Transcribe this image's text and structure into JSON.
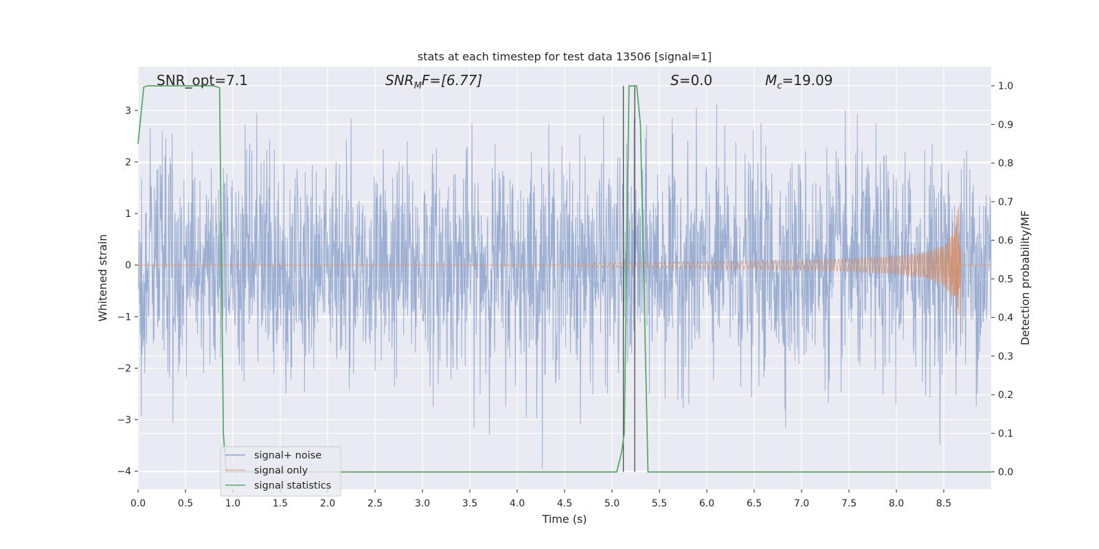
{
  "chart_data": {
    "type": "line",
    "title": "stats at each timestep for test data 13506 [signal=1]",
    "xlabel": "Time (s)",
    "ylabel": "Whitened strain",
    "ylabel_right": "Detection probability/MF",
    "xlim": [
      0,
      9.0
    ],
    "ylim": [
      -4.35,
      3.85
    ],
    "ylim_right": [
      -0.045,
      1.05
    ],
    "xticks": [
      "0.0",
      "0.5",
      "1.0",
      "1.5",
      "2.0",
      "2.5",
      "3.0",
      "3.5",
      "4.0",
      "4.5",
      "5.0",
      "5.5",
      "6.0",
      "6.5",
      "7.0",
      "7.5",
      "8.0",
      "8.5"
    ],
    "xtick_values": [
      0,
      0.5,
      1,
      1.5,
      2,
      2.5,
      3,
      3.5,
      4,
      4.5,
      5,
      5.5,
      6,
      6.5,
      7,
      7.5,
      8,
      8.5
    ],
    "yticks_left": [
      "−4",
      "−3",
      "−2",
      "−1",
      "0",
      "1",
      "2",
      "3"
    ],
    "ytick_values_left": [
      -4,
      -3,
      -2,
      -1,
      0,
      1,
      2,
      3
    ],
    "yticks_right": [
      "0.0",
      "0.1",
      "0.2",
      "0.3",
      "0.4",
      "0.5",
      "0.6",
      "0.7",
      "0.8",
      "0.9",
      "1.0"
    ],
    "ytick_values_right": [
      0,
      0.1,
      0.2,
      0.3,
      0.4,
      0.5,
      0.6,
      0.7,
      0.8,
      0.9,
      1.0
    ],
    "grid": true,
    "legend_position": "lower-left",
    "colors": {
      "background": "#eaeaf2",
      "grid": "#ffffff",
      "noise": "#4c72b0",
      "signal": "#dd8452",
      "stat": "#55a868",
      "marker": "#4a4a4a"
    },
    "series": [
      {
        "name": "signal+ noise",
        "description_values": "dense noisy whitened strain, amplitude mostly within ±2, peaks near ±3.5",
        "peak_max": 3.5,
        "peak_min": -4.0
      },
      {
        "name": "signal only",
        "chirp_envelope": {
          "x": [
            4.3,
            5.0,
            6.0,
            7.0,
            7.5,
            8.0,
            8.3,
            8.5,
            8.6,
            8.68
          ],
          "amp": [
            0.0,
            0.05,
            0.07,
            0.1,
            0.12,
            0.18,
            0.25,
            0.4,
            0.7,
            1.35
          ]
        },
        "merger_time": 8.68
      },
      {
        "name": "signal statistics",
        "axis": "right",
        "x": [
          0.0,
          0.06,
          0.1,
          0.2,
          0.5,
          0.8,
          0.86,
          0.88,
          0.9,
          0.93,
          1.0,
          5.05,
          5.1,
          5.13,
          5.18,
          5.2,
          5.26,
          5.3,
          5.38,
          5.4,
          6.5,
          9.0
        ],
        "y": [
          0.85,
          0.997,
          1.0,
          1.0,
          1.0,
          1.0,
          0.995,
          0.55,
          0.1,
          0.0,
          0.0,
          0.0,
          0.05,
          0.1,
          1.0,
          1.0,
          1.0,
          0.9,
          0.0,
          0.0,
          0.0,
          0.0
        ]
      }
    ],
    "vertical_markers": {
      "x": [
        5.12,
        5.24
      ],
      "y_top_right": 1.0,
      "y_bottom_right": 0.0
    },
    "annotations": [
      {
        "text": "SNR_opt=7.1",
        "x": 0.19
      },
      {
        "text_main": "SNR",
        "text_sub": "M",
        "text_after": "F=[6.77]",
        "x": 2.6,
        "italic": true
      },
      {
        "text_main": "S",
        "text_sub": "",
        "text_after": "=0.0",
        "x": 5.6,
        "italic": true
      },
      {
        "text_main": "M",
        "text_sub": "c",
        "text_after": "=19.09",
        "x": 6.6,
        "italic": true
      }
    ]
  }
}
